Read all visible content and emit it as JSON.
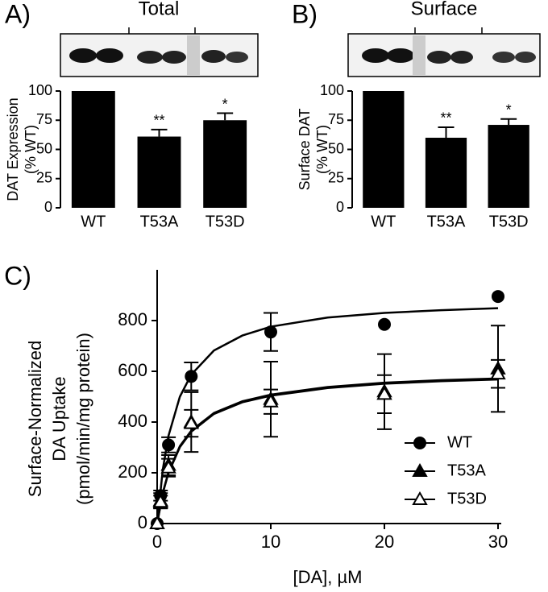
{
  "chart_data": [
    {
      "type": "bar",
      "panel_label": "A)",
      "title": "Total",
      "ylabel": [
        "DAT Expression",
        "(% WT)"
      ],
      "categories": [
        "WT",
        "T53A",
        "T53D"
      ],
      "values": [
        100,
        61,
        75
      ],
      "errors": [
        0,
        6,
        6
      ],
      "annotations": [
        null,
        "**",
        "*"
      ],
      "color": "#000000",
      "ylim": [
        0,
        100
      ],
      "yticks": [
        0,
        25,
        50,
        75,
        100
      ]
    },
    {
      "type": "bar",
      "panel_label": "B)",
      "title": "Surface",
      "ylabel": [
        "Surface DAT",
        "(% WT)"
      ],
      "categories": [
        "WT",
        "T53A",
        "T53D"
      ],
      "values": [
        100,
        60,
        71
      ],
      "errors": [
        0,
        9,
        5
      ],
      "annotations": [
        null,
        "**",
        "*"
      ],
      "color": "#000000",
      "ylim": [
        0,
        100
      ],
      "yticks": [
        0,
        25,
        50,
        75,
        100
      ]
    },
    {
      "type": "scatter",
      "panel_label": "C)",
      "xlabel": "[DA], µM",
      "ylabel": [
        "Surface-Normalized",
        "DA Uptake",
        "(pmol/min/mg protein)"
      ],
      "x": [
        0,
        0.3,
        1,
        3,
        10,
        20,
        30
      ],
      "series": [
        {
          "name": "WT",
          "color": "#000000",
          "marker": "circle",
          "filled": true,
          "values": [
            0,
            110,
            310,
            580,
            755,
            785,
            895
          ],
          "errors": [
            null,
            20,
            30,
            55,
            75,
            null,
            null
          ],
          "fit": {
            "x": [
              0,
              0.5,
              1,
              2,
              3,
              5,
              7.5,
              10,
              15,
              20,
              25,
              30
            ],
            "values": [
              0,
              214,
              346,
              500,
              587,
              682,
              741,
              776,
              812,
              830,
              841,
              849
            ]
          }
        },
        {
          "name": "T53A",
          "color": "#000000",
          "marker": "triangle",
          "filled": true,
          "values": [
            0,
            90,
            230,
            400,
            490,
            520,
            610
          ],
          "errors": [
            null,
            30,
            40,
            118,
            148,
            148,
            170
          ],
          "fit": {
            "x": [
              0,
              0.5,
              1,
              2,
              3,
              5,
              7.5,
              10,
              15,
              20,
              25,
              30
            ],
            "values": [
              0,
              122,
              203,
              305,
              366,
              436,
              482,
              508,
              538,
              555,
              565,
              572
            ]
          }
        },
        {
          "name": "T53D",
          "color": "#000000",
          "marker": "triangle",
          "filled": false,
          "values": [
            0,
            85,
            220,
            395,
            480,
            510,
            590
          ],
          "errors": [
            null,
            25,
            35,
            53,
            48,
            75,
            55
          ],
          "fit": {
            "x": [
              0,
              0.5,
              1,
              2,
              3,
              5,
              7.5,
              10,
              15,
              20,
              25,
              30
            ],
            "values": [
              0,
              120,
              200,
              301,
              362,
              432,
              478,
              504,
              534,
              551,
              561,
              568
            ]
          }
        }
      ],
      "xlim": [
        0,
        30
      ],
      "xticks": [
        0,
        10,
        20,
        30
      ],
      "ylim": [
        0,
        1000
      ],
      "yticks": [
        0,
        200,
        400,
        600,
        800
      ],
      "legend": "lower-right"
    }
  ]
}
